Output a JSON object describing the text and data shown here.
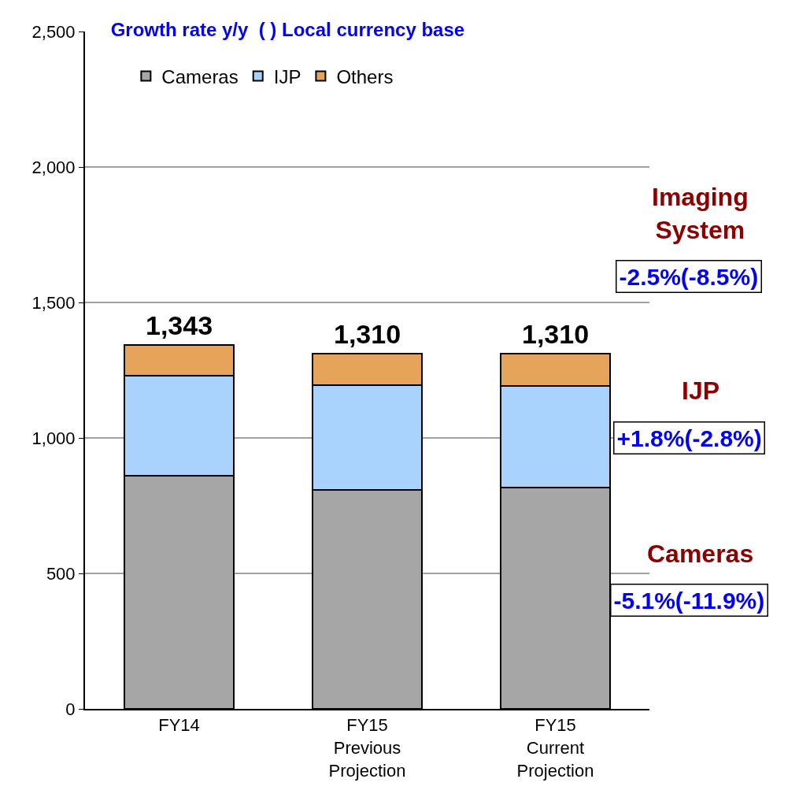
{
  "chart_data": {
    "type": "bar",
    "title": "Growth rate y/y  ( ) Local currency base",
    "categories": [
      "FY14",
      "FY15\nPrevious\nProjection",
      "FY15\nCurrent\nProjection"
    ],
    "stacked": true,
    "series": [
      {
        "name": "Cameras",
        "color": "#a6a6a6",
        "values": [
          861,
          807,
          818
        ]
      },
      {
        "name": "IJP",
        "color": "#a9d3fd",
        "values": [
          369,
          387,
          373
        ]
      },
      {
        "name": "Others",
        "color": "#e6a45a",
        "values": [
          113,
          116,
          119
        ]
      }
    ],
    "totals": [
      "1,343",
      "1,310",
      "1,310"
    ],
    "ylim": [
      0,
      2500
    ],
    "yticks": [
      {
        "value": 0,
        "label": "0"
      },
      {
        "value": 500,
        "label": "500"
      },
      {
        "value": 1000,
        "label": "1,000"
      },
      {
        "value": 1500,
        "label": "1,500"
      },
      {
        "value": 2000,
        "label": "2,000"
      },
      {
        "value": 2500,
        "label": "2,500"
      }
    ],
    "grid": "y",
    "legend": "top left",
    "annotations": [
      "Imaging\nSystem",
      "-2.5%(-8.5%)",
      "IJP",
      "+1.8%(-2.8%)",
      "Cameras",
      "-5.1%(-11.9%)"
    ]
  }
}
